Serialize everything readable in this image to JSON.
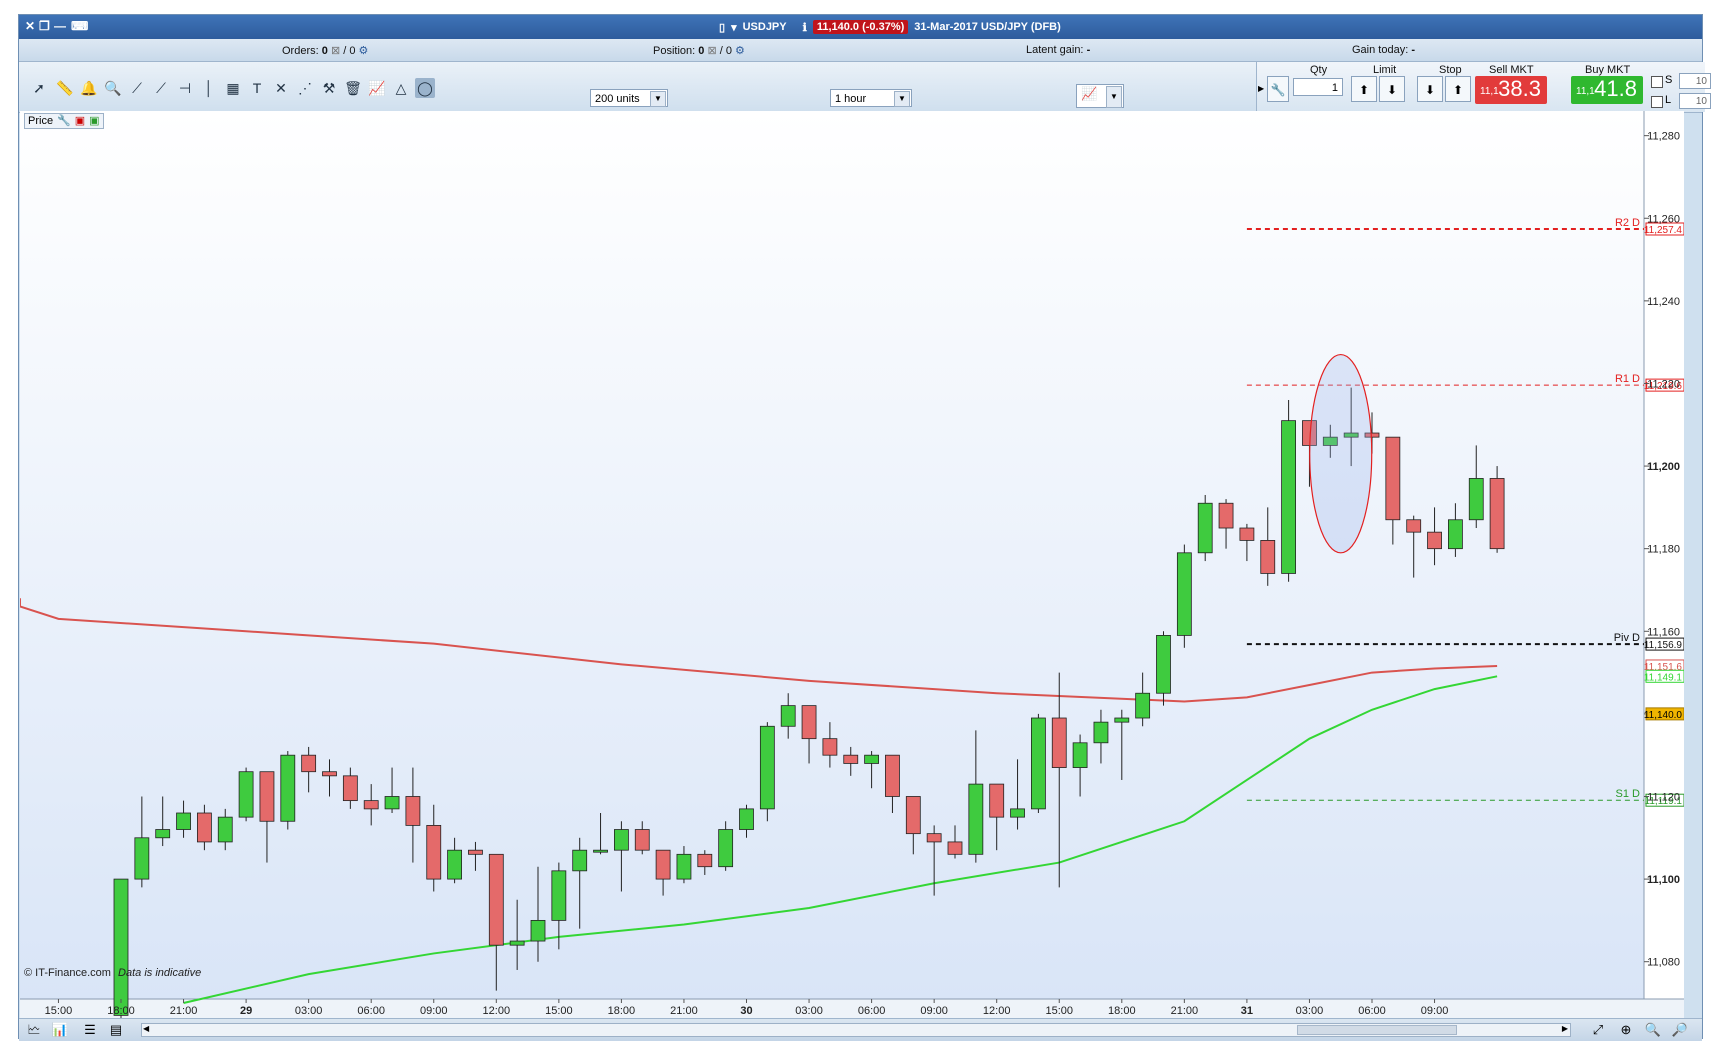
{
  "window": {
    "close_icon": "close-icon",
    "instrument": "USDJPY",
    "price_badge": "11,140.0 (-0.37%)",
    "date_label": "31-Mar-2017 USD/JPY (DFB)"
  },
  "infobar": {
    "orders_label": "Orders:",
    "orders_value": "0",
    "orders_total": "/ 0",
    "position_label": "Position:",
    "position_value": "0",
    "position_total": "/ 0",
    "latent_label": "Latent gain:",
    "latent_value": "-",
    "gain_label": "Gain today:",
    "gain_value": "-"
  },
  "toolbar": {
    "units_select": "200 units",
    "timeframe_select": "1 hour"
  },
  "trade": {
    "qty_label": "Qty",
    "qty_value": "1",
    "limit_label": "Limit",
    "stop_label": "Stop",
    "sell_label": "Sell MKT",
    "buy_label": "Buy MKT",
    "sell_small": "11,1",
    "sell_big": "38.3",
    "buy_small": "11,1",
    "buy_big": "41.8",
    "sell_color": "#e23b3b",
    "buy_color": "#2fb82f",
    "s_label": "S",
    "l_label": "L",
    "s_value": "10",
    "l_value": "10"
  },
  "chart": {
    "price_tag_label": "Price",
    "copyright": "© IT-Finance.com",
    "disclaimer": "Data is indicative"
  },
  "chart_data": {
    "type": "candlestick",
    "title": "",
    "ylim": [
      11070,
      11285
    ],
    "y_ticks": [
      "11,280",
      "11,260",
      "11,240",
      "11,220",
      "11,200",
      "11,180",
      "11,160",
      "11,140",
      "11,120",
      "11,100",
      "11,080"
    ],
    "y_ticks_bold": [
      "11,200",
      "11,100"
    ],
    "x_ticks": [
      {
        "label": "15:00",
        "i": -3
      },
      {
        "label": "18:00",
        "i": 0
      },
      {
        "label": "21:00",
        "i": 3
      },
      {
        "label": "29",
        "i": 6,
        "bold": true
      },
      {
        "label": "03:00",
        "i": 9
      },
      {
        "label": "06:00",
        "i": 12
      },
      {
        "label": "09:00",
        "i": 15
      },
      {
        "label": "12:00",
        "i": 18
      },
      {
        "label": "15:00",
        "i": 21
      },
      {
        "label": "18:00",
        "i": 24
      },
      {
        "label": "21:00",
        "i": 27
      },
      {
        "label": "30",
        "i": 30,
        "bold": true
      },
      {
        "label": "03:00",
        "i": 33
      },
      {
        "label": "06:00",
        "i": 36
      },
      {
        "label": "09:00",
        "i": 39
      },
      {
        "label": "12:00",
        "i": 42
      },
      {
        "label": "15:00",
        "i": 45
      },
      {
        "label": "18:00",
        "i": 48
      },
      {
        "label": "21:00",
        "i": 51
      },
      {
        "label": "31",
        "i": 54,
        "bold": true
      },
      {
        "label": "03:00",
        "i": 57
      },
      {
        "label": "06:00",
        "i": 60
      },
      {
        "label": "09:00",
        "i": 63
      }
    ],
    "candles": [
      [
        11067,
        11100,
        11064,
        11100
      ],
      [
        11100,
        11110,
        11098,
        11120
      ],
      [
        11110,
        11112,
        11108,
        11120
      ],
      [
        11112,
        11116,
        11110,
        11119
      ],
      [
        11116,
        11109,
        11107,
        11118
      ],
      [
        11109,
        11115,
        11107,
        11117
      ],
      [
        11115,
        11126,
        11114,
        11127
      ],
      [
        11126,
        11114,
        11104,
        11126
      ],
      [
        11114,
        11130,
        11112,
        11131
      ],
      [
        11130,
        11126,
        11121,
        11132
      ],
      [
        11126,
        11125,
        11120,
        11129
      ],
      [
        11125,
        11119,
        11117,
        11127
      ],
      [
        11119,
        11117,
        11113,
        11123
      ],
      [
        11117,
        11120,
        11116,
        11127
      ],
      [
        11120,
        11113,
        11104,
        11127
      ],
      [
        11113,
        11100,
        11097,
        11118
      ],
      [
        11100,
        11107,
        11099,
        11110
      ],
      [
        11107,
        11106,
        11102,
        11109
      ],
      [
        11106,
        11084,
        11073,
        11106
      ],
      [
        11084,
        11085,
        11078,
        11095
      ],
      [
        11085,
        11090,
        11080,
        11103
      ],
      [
        11090,
        11102,
        11083,
        11104
      ],
      [
        11102,
        11107,
        11088,
        11110
      ],
      [
        11107,
        11107,
        11106,
        11116
      ],
      [
        11107,
        11112,
        11097,
        11114
      ],
      [
        11112,
        11107,
        11106,
        11114
      ],
      [
        11107,
        11100,
        11096,
        11107
      ],
      [
        11100,
        11106,
        11099,
        11108
      ],
      [
        11106,
        11103,
        11101,
        11107
      ],
      [
        11103,
        11112,
        11102,
        11114
      ],
      [
        11112,
        11117,
        11110,
        11118
      ],
      [
        11117,
        11137,
        11114,
        11138
      ],
      [
        11137,
        11142,
        11134,
        11145
      ],
      [
        11142,
        11134,
        11128,
        11142
      ],
      [
        11134,
        11130,
        11127,
        11138
      ],
      [
        11130,
        11128,
        11125,
        11132
      ],
      [
        11128,
        11130,
        11122,
        11131
      ],
      [
        11130,
        11120,
        11116,
        11130
      ],
      [
        11120,
        11111,
        11106,
        11120
      ],
      [
        11111,
        11109,
        11096,
        11113
      ],
      [
        11109,
        11106,
        11105,
        11113
      ],
      [
        11106,
        11123,
        11104,
        11136
      ],
      [
        11123,
        11115,
        11107,
        11123
      ],
      [
        11115,
        11117,
        11112,
        11129
      ],
      [
        11117,
        11139,
        11116,
        11140
      ],
      [
        11139,
        11127,
        11098,
        11150
      ],
      [
        11127,
        11133,
        11120,
        11135
      ],
      [
        11133,
        11138,
        11128,
        11141
      ],
      [
        11138,
        11139,
        11124,
        11141
      ],
      [
        11139,
        11145,
        11137,
        11150
      ],
      [
        11145,
        11159,
        11142,
        11160
      ],
      [
        11159,
        11179,
        11156,
        11181
      ],
      [
        11179,
        11191,
        11177,
        11193
      ],
      [
        11191,
        11185,
        11180,
        11192
      ],
      [
        11185,
        11182,
        11177,
        11186
      ],
      [
        11182,
        11174,
        11171,
        11190
      ],
      [
        11174,
        11211,
        11172,
        11216
      ],
      [
        11211,
        11205,
        11195,
        11211
      ],
      [
        11205,
        11207,
        11202,
        11210
      ],
      [
        11207,
        11208,
        11200,
        11219
      ],
      [
        11208,
        11207,
        11203,
        11213
      ],
      [
        11207,
        11187,
        11181,
        11207
      ],
      [
        11187,
        11184,
        11173,
        11188
      ],
      [
        11184,
        11180,
        11176,
        11190
      ],
      [
        11180,
        11187,
        11178,
        11191
      ],
      [
        11187,
        11197,
        11185,
        11205
      ],
      [
        11197,
        11180,
        11179,
        11200
      ]
    ],
    "moving_averages": [
      {
        "color": "#d9534f",
        "points": [
          [
            -11,
            11168
          ],
          [
            -9,
            11166
          ],
          [
            -3,
            11163
          ],
          [
            6,
            11160
          ],
          [
            15,
            11157
          ],
          [
            24,
            11152
          ],
          [
            33,
            11148
          ],
          [
            42,
            11145
          ],
          [
            51,
            11143
          ],
          [
            54,
            11144
          ],
          [
            57,
            11147
          ],
          [
            60,
            11150
          ],
          [
            63,
            11151
          ],
          [
            66,
            11151.6
          ]
        ]
      },
      {
        "color": "#34d634",
        "points": [
          [
            3,
            11070
          ],
          [
            9,
            11077
          ],
          [
            15,
            11082
          ],
          [
            21,
            11086
          ],
          [
            27,
            11089
          ],
          [
            33,
            11093
          ],
          [
            39,
            11099
          ],
          [
            45,
            11104
          ],
          [
            51,
            11114
          ],
          [
            54,
            11124
          ],
          [
            57,
            11134
          ],
          [
            60,
            11141
          ],
          [
            63,
            11146
          ],
          [
            66,
            11149.1
          ]
        ]
      }
    ],
    "levels": [
      {
        "label": "R2 D",
        "value": 11257.4,
        "text": "11,257.4",
        "color": "#e32020",
        "style": "dashed-thick"
      },
      {
        "label": "R1 D",
        "value": 11219.6,
        "text": "11,219.6",
        "color": "#e32020",
        "style": "dashed"
      },
      {
        "label": "Piv D",
        "value": 11156.9,
        "text": "11,156.9",
        "color": "#111111",
        "style": "dashed-thick"
      },
      {
        "label": "S1 D",
        "value": 11119.1,
        "text": "11,119.1",
        "color": "#2a9a2a",
        "style": "dashed"
      }
    ],
    "value_tags": [
      {
        "value": 11151.6,
        "text": "11,151.6",
        "color": "#d9534f"
      },
      {
        "value": 11149.1,
        "text": "11,149.1",
        "color": "#34d634"
      },
      {
        "value": 11140.0,
        "text": "11,140.0",
        "color": "#f0b400"
      }
    ],
    "highlight_ellipse": {
      "i_center": 58.5,
      "y_center": 11203,
      "ry": 24,
      "color": "#e32020"
    }
  }
}
